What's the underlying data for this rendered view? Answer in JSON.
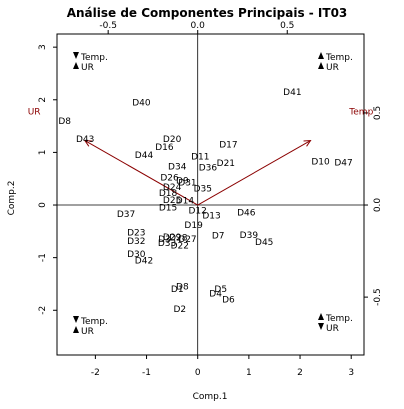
{
  "chart_data": {
    "type": "scatter",
    "subtype": "biplot",
    "title": "Análise de Componentes Principais -  IT03",
    "xlabel": "Comp.1",
    "ylabel": "Comp.2",
    "xlim": [
      -2.75,
      3.25
    ],
    "ylim": [
      -2.85,
      3.25
    ],
    "xticks": [
      -2,
      -1,
      0,
      1,
      2,
      3
    ],
    "yticks": [
      -2,
      -1,
      0,
      1,
      2,
      3
    ],
    "top_ticks": [
      -0.5,
      0.0,
      0.5
    ],
    "right_ticks": [
      0.5,
      0.0,
      -0.5
    ],
    "loading_scale": 3.5,
    "points": [
      {
        "label": "D8",
        "x": -2.6,
        "y": 1.6
      },
      {
        "label": "D43",
        "x": -2.2,
        "y": 1.25
      },
      {
        "label": "D40",
        "x": -1.1,
        "y": 1.95
      },
      {
        "label": "D41",
        "x": 1.85,
        "y": 2.15
      },
      {
        "label": "D20",
        "x": -0.5,
        "y": 1.25
      },
      {
        "label": "D16",
        "x": -0.65,
        "y": 1.1
      },
      {
        "label": "D17",
        "x": 0.6,
        "y": 1.15
      },
      {
        "label": "D44",
        "x": -1.05,
        "y": 0.95
      },
      {
        "label": "D11",
        "x": 0.05,
        "y": 0.92
      },
      {
        "label": "D21",
        "x": 0.55,
        "y": 0.8
      },
      {
        "label": "D10",
        "x": 2.4,
        "y": 0.83
      },
      {
        "label": "D47",
        "x": 2.85,
        "y": 0.81
      },
      {
        "label": "D34",
        "x": -0.4,
        "y": 0.73
      },
      {
        "label": "D36",
        "x": 0.2,
        "y": 0.71
      },
      {
        "label": "D26",
        "x": -0.55,
        "y": 0.52
      },
      {
        "label": "D9",
        "x": -0.3,
        "y": 0.47
      },
      {
        "label": "D31",
        "x": -0.2,
        "y": 0.43
      },
      {
        "label": "D24",
        "x": -0.5,
        "y": 0.34
      },
      {
        "label": "D35",
        "x": 0.1,
        "y": 0.31
      },
      {
        "label": "D18",
        "x": -0.58,
        "y": 0.23
      },
      {
        "label": "D25",
        "x": -0.5,
        "y": 0.1
      },
      {
        "label": "D14",
        "x": -0.25,
        "y": 0.09
      },
      {
        "label": "D15",
        "x": -0.58,
        "y": -0.05
      },
      {
        "label": "D12",
        "x": 0.0,
        "y": -0.1
      },
      {
        "label": "D13",
        "x": 0.27,
        "y": -0.2
      },
      {
        "label": "D46",
        "x": 0.95,
        "y": -0.14
      },
      {
        "label": "D37",
        "x": -1.4,
        "y": -0.17
      },
      {
        "label": "D19",
        "x": -0.08,
        "y": -0.38
      },
      {
        "label": "D23",
        "x": -1.2,
        "y": -0.52
      },
      {
        "label": "D7",
        "x": 0.4,
        "y": -0.58
      },
      {
        "label": "D39",
        "x": 1.0,
        "y": -0.57
      },
      {
        "label": "D32",
        "x": -1.2,
        "y": -0.68
      },
      {
        "label": "D29",
        "x": -0.5,
        "y": -0.61
      },
      {
        "label": "D3",
        "x": -0.65,
        "y": -0.65
      },
      {
        "label": "D28",
        "x": -0.38,
        "y": -0.62
      },
      {
        "label": "D27",
        "x": -0.2,
        "y": -0.65
      },
      {
        "label": "D33",
        "x": -0.6,
        "y": -0.72
      },
      {
        "label": "D45",
        "x": 1.3,
        "y": -0.7
      },
      {
        "label": "D22",
        "x": -0.35,
        "y": -0.77
      },
      {
        "label": "D30",
        "x": -1.2,
        "y": -0.93
      },
      {
        "label": "D42",
        "x": -1.05,
        "y": -1.05
      },
      {
        "label": "D8",
        "x": -0.3,
        "y": -1.55
      },
      {
        "label": "D1",
        "x": -0.4,
        "y": -1.6
      },
      {
        "label": "D5",
        "x": 0.45,
        "y": -1.6
      },
      {
        "label": "D4",
        "x": 0.35,
        "y": -1.68
      },
      {
        "label": "D6",
        "x": 0.6,
        "y": -1.8
      },
      {
        "label": "D2",
        "x": -0.35,
        "y": -1.98
      }
    ],
    "loadings": [
      {
        "label": "UR",
        "x": -0.63,
        "y": 0.35
      },
      {
        "label": "Temp",
        "x": 0.63,
        "y": 0.35
      }
    ],
    "corner_legends": [
      {
        "position": "top-left",
        "lines": [
          {
            "arrow": "down",
            "text": "Temp."
          },
          {
            "arrow": "up",
            "text": "UR"
          }
        ]
      },
      {
        "position": "top-right",
        "lines": [
          {
            "arrow": "up",
            "text": "Temp."
          },
          {
            "arrow": "up",
            "text": "UR"
          }
        ]
      },
      {
        "position": "bottom-left",
        "lines": [
          {
            "arrow": "down",
            "text": "Temp."
          },
          {
            "arrow": "up",
            "text": "UR"
          }
        ]
      },
      {
        "position": "bottom-right",
        "lines": [
          {
            "arrow": "up",
            "text": "Temp."
          },
          {
            "arrow": "down",
            "text": "UR"
          }
        ]
      }
    ],
    "colors": {
      "points": "#000000",
      "arrows": "#8b0000",
      "axes": "#000000"
    }
  }
}
